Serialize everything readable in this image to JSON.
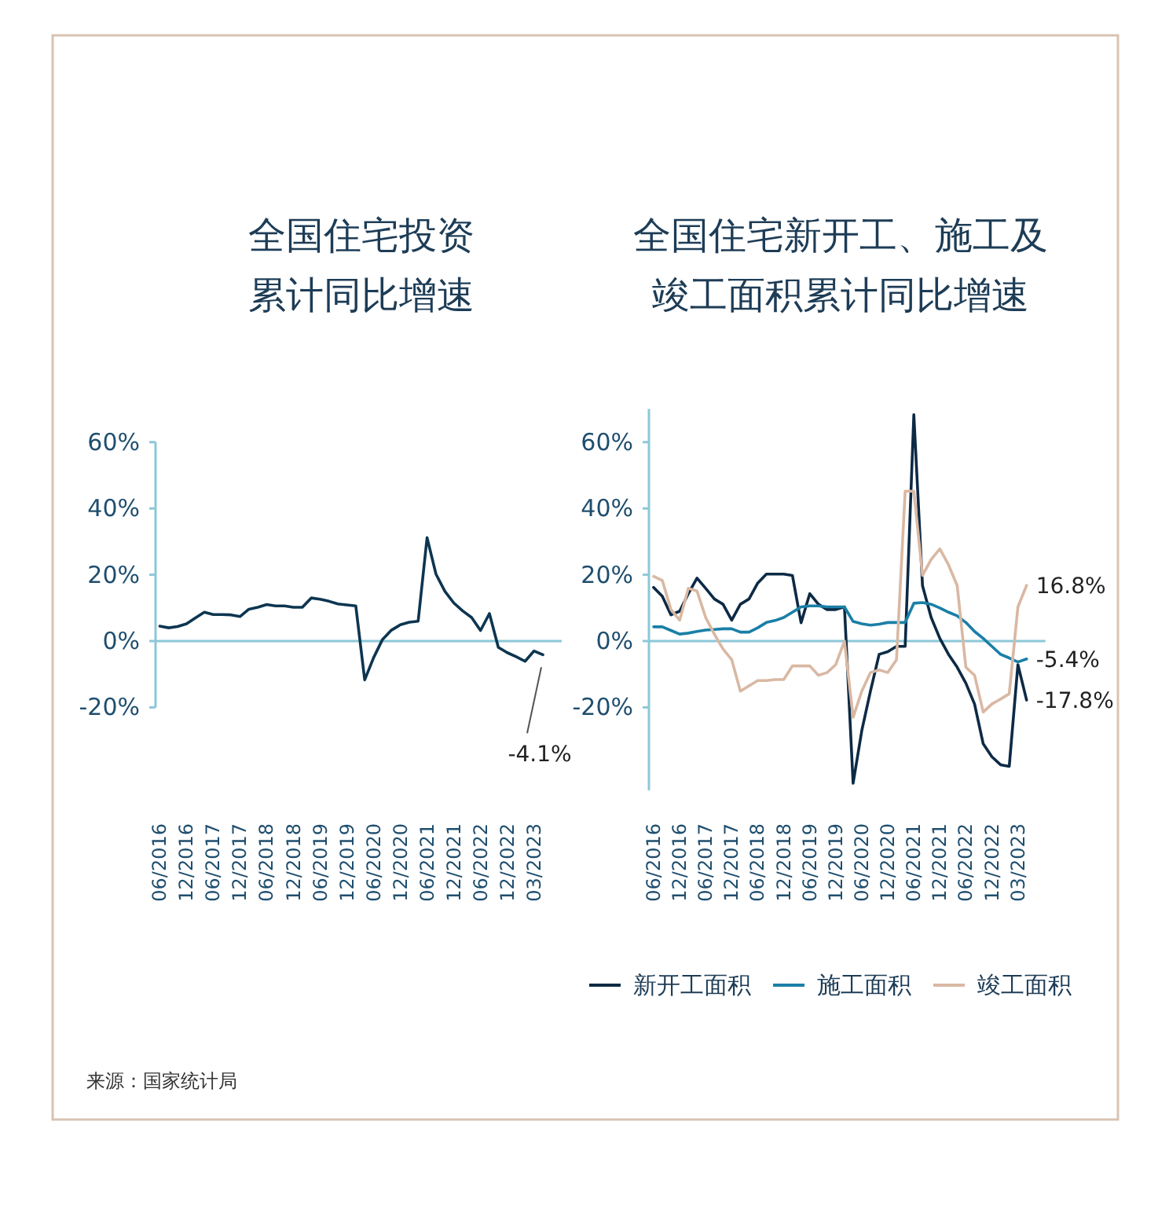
{
  "chart_data": [
    {
      "type": "line",
      "title": "全国住宅投资累计同比增速",
      "color": "#0d3550",
      "categories": [
        "06/2016",
        null,
        null,
        "12/2016",
        null,
        null,
        "06/2017",
        null,
        null,
        "12/2017",
        null,
        null,
        "06/2018",
        null,
        null,
        "12/2018",
        null,
        null,
        "06/2019",
        null,
        null,
        "12/2019",
        null,
        null,
        "06/2020",
        null,
        null,
        "12/2020",
        null,
        null,
        "06/2021",
        null,
        null,
        "12/2021",
        null,
        null,
        "06/2022",
        null,
        null,
        "12/2022",
        null,
        null,
        "03/2023",
        null
      ],
      "values": [
        4.5,
        4,
        4.4,
        5.2,
        7,
        8.7,
        8,
        8,
        7.9,
        7.4,
        9.6,
        10.2,
        11,
        10.6,
        10.6,
        10.2,
        10.2,
        13,
        12.6,
        12,
        11.2,
        10.9,
        10.6,
        -11.7,
        -5,
        0.5,
        3.3,
        4.9,
        5.7,
        6,
        31.2,
        20.2,
        15,
        11.5,
        9.1,
        7.1,
        3.2,
        8.3,
        -1.9,
        -3.5,
        -4.7,
        -6.1,
        -3,
        -4.1
      ],
      "value_labels": [
        null,
        null,
        null,
        null,
        null,
        null,
        null,
        null,
        null,
        null,
        null,
        null,
        null,
        null,
        null,
        null,
        null,
        null,
        null,
        null,
        null,
        null,
        null,
        null,
        null,
        null,
        null,
        null,
        null,
        null,
        null,
        null,
        null,
        null,
        null,
        null,
        null,
        null,
        null,
        null,
        null,
        null,
        null,
        "-4.1%"
      ],
      "ylim": [
        -20,
        60
      ],
      "yticks": [
        {
          "value": -20,
          "label": "-20%"
        },
        {
          "value": 0,
          "label": "0%"
        },
        {
          "value": 20,
          "label": "20%"
        },
        {
          "value": 40,
          "label": "40%"
        },
        {
          "value": 60,
          "label": "60%"
        }
      ],
      "ref_lines": [
        {
          "axis": "y",
          "value": 0,
          "color": "#8cc8d8"
        }
      ],
      "annotations": [
        "来源：国家统计局"
      ]
    },
    {
      "type": "line",
      "title": "全国住宅新开工、施工及竣工面积累计同比增速",
      "legend": "bottom",
      "categories": [
        "06/2016",
        null,
        null,
        "12/2016",
        null,
        null,
        "06/2017",
        null,
        null,
        "12/2017",
        null,
        null,
        "06/2018",
        null,
        null,
        "12/2018",
        null,
        null,
        "06/2019",
        null,
        null,
        "12/2019",
        null,
        null,
        "06/2020",
        null,
        null,
        "12/2020",
        null,
        null,
        "06/2021",
        null,
        null,
        "12/2021",
        null,
        null,
        "06/2022",
        null,
        null,
        "12/2022",
        null,
        null,
        "03/2023",
        null
      ],
      "series": [
        {
          "name": "新开工面积",
          "color": "#0d2a45",
          "values": [
            16.2,
            13.5,
            7.9,
            9,
            14.3,
            19,
            15.9,
            12.7,
            11.1,
            6.3,
            11.1,
            12.7,
            17.5,
            20.2,
            20.2,
            20.2,
            19.8,
            5.5,
            14.3,
            11.1,
            9.5,
            9.5,
            10.3,
            -42.9,
            -27,
            -15.1,
            -4,
            -3.2,
            -1.6,
            -1.6,
            68.3,
            16.7,
            7.1,
            0.8,
            -4,
            -7.9,
            -12.7,
            -19,
            -31,
            -34.9,
            -37.3,
            -37.8,
            -7.1,
            -17.8
          ],
          "value_labels": [
            null,
            null,
            null,
            null,
            null,
            null,
            null,
            null,
            null,
            null,
            null,
            null,
            null,
            null,
            null,
            null,
            null,
            null,
            null,
            null,
            null,
            null,
            null,
            null,
            null,
            null,
            null,
            null,
            null,
            null,
            null,
            null,
            null,
            null,
            null,
            null,
            null,
            null,
            null,
            null,
            null,
            null,
            null,
            "-17.8%"
          ]
        },
        {
          "name": "施工面积",
          "color": "#1a7fa6",
          "values": [
            4.3,
            4.3,
            3.2,
            2.1,
            2.4,
            2.9,
            3.3,
            3.5,
            3.7,
            3.7,
            2.7,
            2.7,
            4,
            5.6,
            6.2,
            7.1,
            8.7,
            10.3,
            10.6,
            10.6,
            10.3,
            10.3,
            10.3,
            5.9,
            5.2,
            4.8,
            5.1,
            5.6,
            5.6,
            5.6,
            11.4,
            11.6,
            11.1,
            10,
            8.7,
            7.6,
            5.6,
            2.9,
            0.8,
            -1.6,
            -4,
            -5.1,
            -6.3,
            -5.4
          ],
          "value_labels": [
            null,
            null,
            null,
            null,
            null,
            null,
            null,
            null,
            null,
            null,
            null,
            null,
            null,
            null,
            null,
            null,
            null,
            null,
            null,
            null,
            null,
            null,
            null,
            null,
            null,
            null,
            null,
            null,
            null,
            null,
            null,
            null,
            null,
            null,
            null,
            null,
            null,
            null,
            null,
            null,
            null,
            null,
            null,
            "-5.4%"
          ]
        },
        {
          "name": "竣工面积",
          "color": "#d9b8a3",
          "values": [
            19.5,
            18.3,
            9.5,
            6.3,
            15.9,
            15.1,
            7.1,
            2.1,
            -2.4,
            -5.6,
            -15.1,
            -13.5,
            -11.9,
            -11.9,
            -11.6,
            -11.6,
            -7.5,
            -7.5,
            -7.5,
            -10.3,
            -9.5,
            -7.1,
            0,
            -23,
            -15.1,
            -9.5,
            -8.7,
            -9.5,
            -5.6,
            45.2,
            45.2,
            19.8,
            24.6,
            27.8,
            23,
            16.7,
            -7.9,
            -10.3,
            -21.4,
            -19,
            -17.5,
            -15.9,
            10.3,
            16.8
          ],
          "value_labels": [
            null,
            null,
            null,
            null,
            null,
            null,
            null,
            null,
            null,
            null,
            null,
            null,
            null,
            null,
            null,
            null,
            null,
            null,
            null,
            null,
            null,
            null,
            null,
            null,
            null,
            null,
            null,
            null,
            null,
            null,
            null,
            null,
            null,
            null,
            null,
            null,
            null,
            null,
            null,
            null,
            null,
            null,
            null,
            "16.8%"
          ]
        }
      ],
      "ylim": [
        -45,
        70
      ],
      "ref_lines": [
        {
          "axis": "y",
          "value": 0,
          "color": "#8cc8d8"
        }
      ],
      "yticks": [
        {
          "value": -20,
          "label": "-20%"
        },
        {
          "value": 0,
          "label": "0%"
        },
        {
          "value": 20,
          "label": "20%"
        },
        {
          "value": 40,
          "label": "40%"
        },
        {
          "value": 60,
          "label": "60%"
        }
      ]
    }
  ]
}
